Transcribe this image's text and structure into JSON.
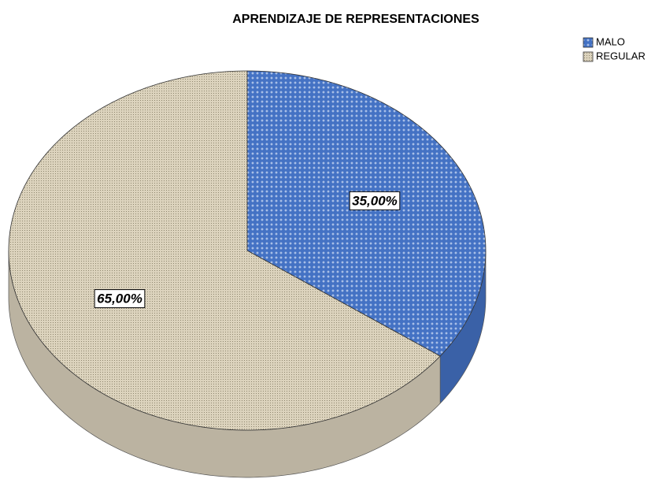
{
  "chart_data": {
    "type": "pie",
    "title": "APRENDIZAJE DE REPRESENTACIONES",
    "categories": [
      "MALO",
      "REGULAR"
    ],
    "values": [
      35,
      65
    ],
    "value_labels": [
      "35,00%",
      "65,00%"
    ],
    "colors": [
      "#4472c4",
      "#dcd3bd"
    ],
    "legend": "top-right"
  }
}
